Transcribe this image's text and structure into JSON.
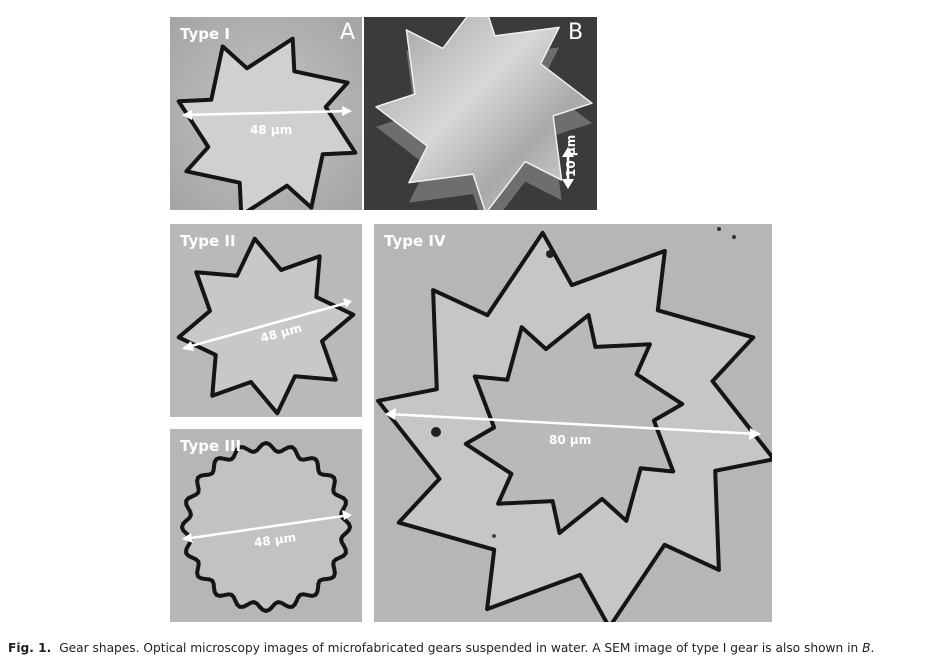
{
  "panels": {
    "type1": {
      "label": "Type I",
      "letter": "A",
      "scale": "48 µm"
    },
    "sem": {
      "letter": "B",
      "scale": "10 µm"
    },
    "type2": {
      "label": "Type II",
      "scale": "48 µm"
    },
    "type3": {
      "label": "Type III",
      "scale": "48 µm"
    },
    "type4": {
      "label": "Type IV",
      "scale": "80 µm"
    }
  },
  "caption": {
    "fig_label": "Fig. 1.",
    "text_before": "Gear shapes. Optical microscopy images of microfabricated gears suspended in water. A SEM image of type I gear is also shown in ",
    "text_italic": "B",
    "text_after": "."
  }
}
